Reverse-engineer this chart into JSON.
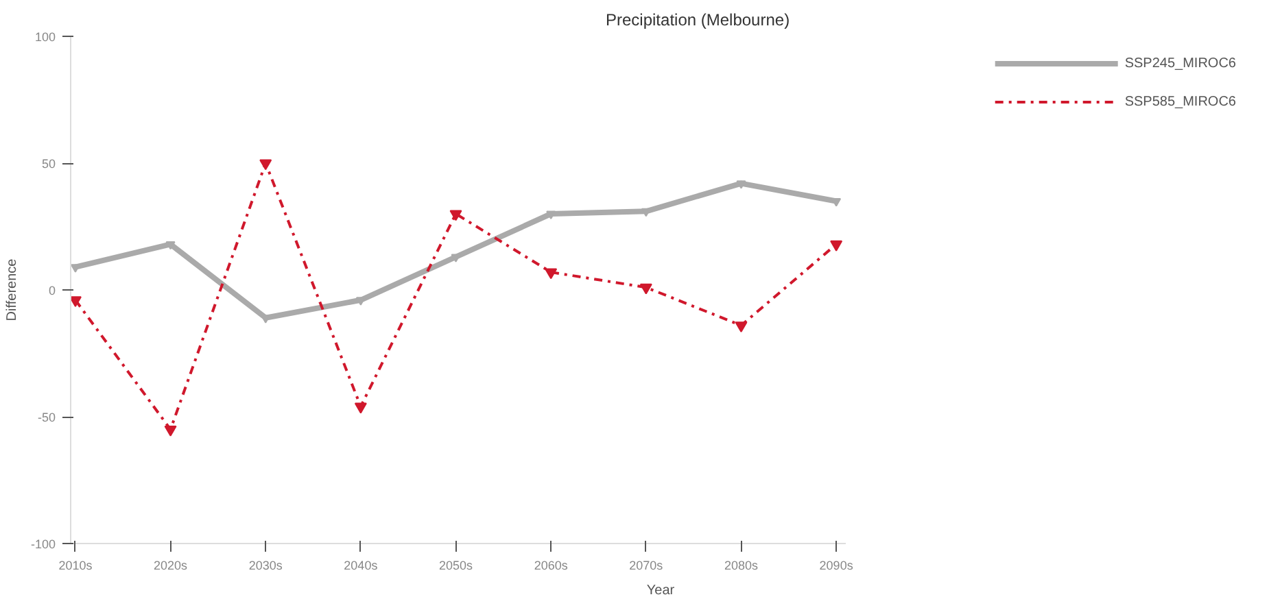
{
  "chart_data": {
    "type": "line",
    "title": "Precipitation (Melbourne)",
    "xlabel": "Year",
    "ylabel": "Difference",
    "categories": [
      "2010s",
      "2020s",
      "2030s",
      "2040s",
      "2050s",
      "2060s",
      "2070s",
      "2080s",
      "2090s"
    ],
    "series": [
      {
        "name": "SSP245_MIROC6",
        "color": "#aaaaaa",
        "line_style": "solid",
        "values": [
          9,
          18,
          -11,
          -4,
          13,
          30,
          31,
          42,
          35
        ]
      },
      {
        "name": "SSP585_MIROC6",
        "color": "#d0182c",
        "line_style": "dashdot",
        "values": [
          -4,
          -55,
          50,
          -46,
          30,
          7,
          1,
          -14,
          18
        ]
      }
    ],
    "ylim": [
      -100,
      100
    ],
    "yticks": [
      -100,
      -50,
      0,
      50,
      100
    ],
    "grid": false,
    "legend": "top right",
    "marker": "triangle"
  }
}
